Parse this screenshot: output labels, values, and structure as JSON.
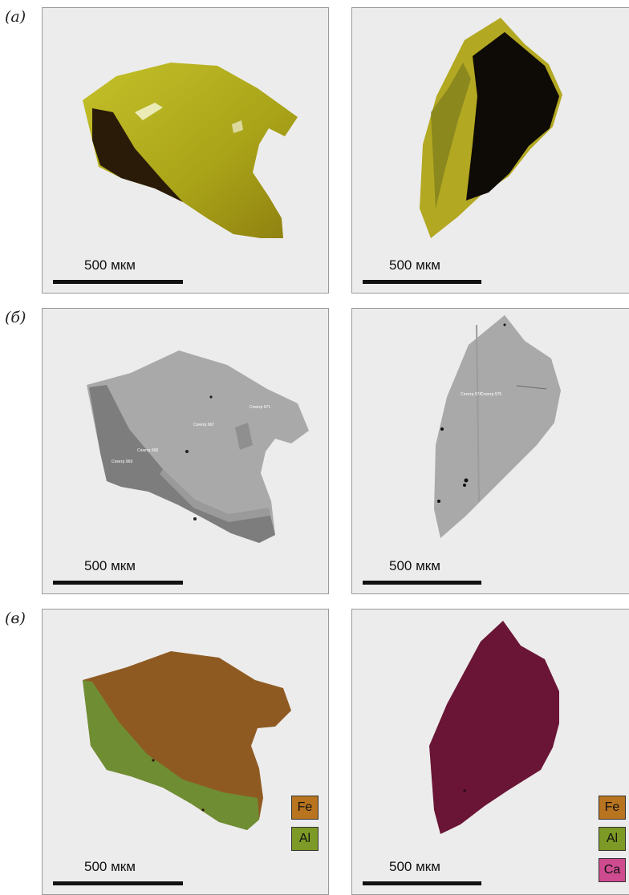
{
  "rows": [
    {
      "label": "(а)"
    },
    {
      "label": "(б)"
    },
    {
      "label": "(в)"
    }
  ],
  "scale_bar": {
    "text": "500 мкм"
  },
  "bse_spectra": {
    "left": [
      "Спектр 971",
      "Спектр 967",
      "Спектр 968",
      "Спектр 969"
    ],
    "right": [
      "Спектр 974",
      "Спектр 975"
    ]
  },
  "legend_left": [
    {
      "text": "Fe",
      "color": "#b8741f"
    },
    {
      "text": "Al",
      "color": "#7e9a26"
    }
  ],
  "legend_right": [
    {
      "text": "Fe",
      "color": "#b8741f"
    },
    {
      "text": "Al",
      "color": "#7e9a26"
    },
    {
      "text": "Ca",
      "color": "#cf4b8f"
    }
  ],
  "colors": {
    "grain_yellow": "#b0ac1a",
    "grain_dark": "#2a1a08",
    "bse_gray": "#a9a9a9",
    "bse_band": "#7d7d7d",
    "map_brown": "#8f5a22",
    "map_green": "#6f8d32",
    "map_magenta": "#6a1535"
  }
}
